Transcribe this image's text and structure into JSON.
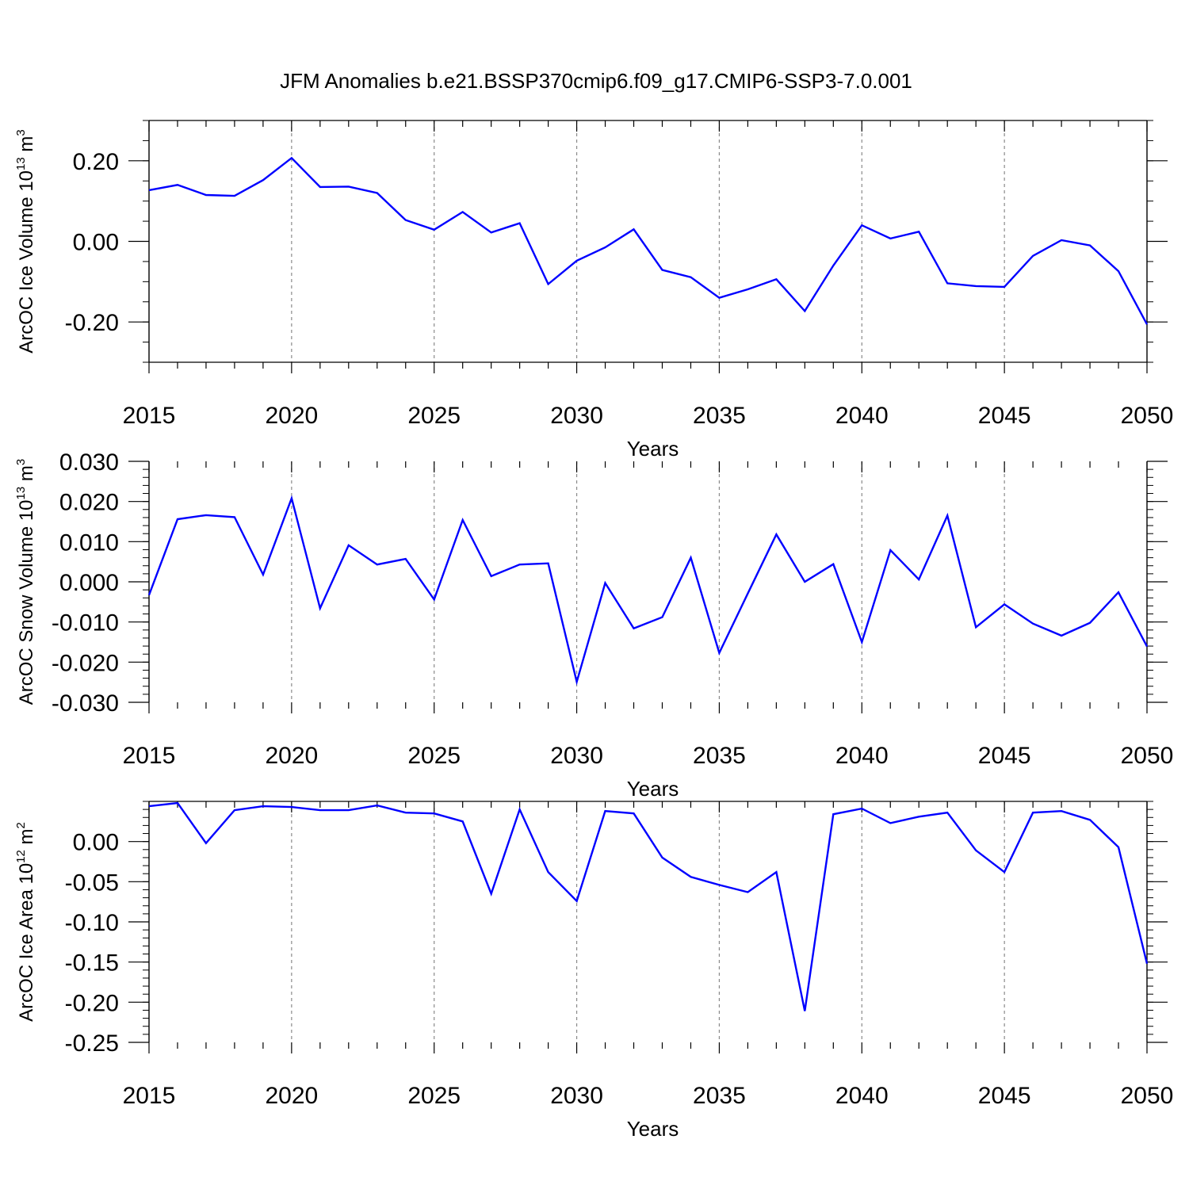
{
  "figure": {
    "title": "JFM Anomalies b.e21.BSSP370cmip6.f09_g17.CMIP6-SSP3-7.0.001",
    "line_color": "#0000ff"
  },
  "chart_data": [
    {
      "type": "line",
      "title": "JFM Anomalies b.e21.BSSP370cmip6.f09_g17.CMIP6-SSP3-7.0.001",
      "xlabel": "Years",
      "ylabel": "ArcOC Ice Volume",
      "ylabel_unit": "10^13 m^3",
      "ylabel_unit_base": "10",
      "ylabel_unit_exp": "13",
      "ylabel_unit_m": "m",
      "ylabel_unit_m_exp": "3",
      "xlim": [
        2015,
        2050
      ],
      "ylim": [
        -0.3,
        0.3
      ],
      "x_major_ticks": [
        2015,
        2020,
        2025,
        2030,
        2035,
        2040,
        2045,
        2050
      ],
      "x_tick_labels": [
        "2015",
        "2020",
        "2025",
        "2030",
        "2035",
        "2040",
        "2045",
        "2050"
      ],
      "y_major_ticks": [
        -0.2,
        0.0,
        0.2
      ],
      "y_tick_labels": [
        "-0.20",
        "0.00",
        "0.20"
      ],
      "y_minor_step": 0.05,
      "y_reference_lines": [
        -0.3,
        0.3
      ],
      "x": [
        2015,
        2016,
        2017,
        2018,
        2019,
        2020,
        2021,
        2022,
        2023,
        2024,
        2025,
        2026,
        2027,
        2028,
        2029,
        2030,
        2031,
        2032,
        2033,
        2034,
        2035,
        2036,
        2037,
        2038,
        2039,
        2040,
        2041,
        2042,
        2043,
        2044,
        2045,
        2046,
        2047,
        2048,
        2049,
        2050
      ],
      "series": [
        {
          "name": "ArcOC Ice Volume",
          "values": [
            0.127,
            0.14,
            0.115,
            0.113,
            0.152,
            0.207,
            0.135,
            0.136,
            0.12,
            0.053,
            0.029,
            0.073,
            0.022,
            0.045,
            -0.106,
            -0.048,
            -0.015,
            0.03,
            -0.071,
            -0.089,
            -0.14,
            -0.119,
            -0.094,
            -0.173,
            -0.06,
            0.04,
            0.007,
            0.024,
            -0.104,
            -0.111,
            -0.113,
            -0.036,
            0.003,
            -0.01,
            -0.074,
            -0.206
          ]
        }
      ]
    },
    {
      "type": "line",
      "xlabel": "Years",
      "ylabel": "ArcOC Snow Volume",
      "ylabel_unit": "10^13 m^3",
      "ylabel_unit_base": "10",
      "ylabel_unit_exp": "13",
      "ylabel_unit_m": "m",
      "ylabel_unit_m_exp": "3",
      "xlim": [
        2015,
        2050
      ],
      "ylim": [
        -0.03,
        0.03
      ],
      "x_major_ticks": [
        2015,
        2020,
        2025,
        2030,
        2035,
        2040,
        2045,
        2050
      ],
      "x_tick_labels": [
        "2015",
        "2020",
        "2025",
        "2030",
        "2035",
        "2040",
        "2045",
        "2050"
      ],
      "y_major_ticks": [
        -0.03,
        -0.02,
        -0.01,
        0.0,
        0.01,
        0.02,
        0.03
      ],
      "y_tick_labels": [
        "-0.030",
        "-0.020",
        "-0.010",
        "0.000",
        "0.010",
        "0.020",
        "0.030"
      ],
      "y_minor_step": 0.002,
      "y_reference_lines": [],
      "x": [
        2015,
        2016,
        2017,
        2018,
        2019,
        2020,
        2021,
        2022,
        2023,
        2024,
        2025,
        2026,
        2027,
        2028,
        2029,
        2030,
        2031,
        2032,
        2033,
        2034,
        2035,
        2036,
        2037,
        2038,
        2039,
        2040,
        2041,
        2042,
        2043,
        2044,
        2045,
        2046,
        2047,
        2048,
        2049,
        2050
      ],
      "series": [
        {
          "name": "ArcOC Snow Volume",
          "values": [
            -0.0033,
            0.0156,
            0.0166,
            0.0161,
            0.0018,
            0.0208,
            -0.0066,
            0.0091,
            0.0043,
            0.0057,
            -0.0044,
            0.0154,
            0.0014,
            0.0043,
            0.0046,
            -0.0249,
            -0.0003,
            -0.0116,
            -0.0088,
            0.006,
            -0.0177,
            -0.0029,
            0.0118,
            0.0,
            0.0044,
            -0.015,
            0.0079,
            0.0006,
            0.0165,
            -0.0113,
            -0.0056,
            -0.0104,
            -0.0134,
            -0.0102,
            -0.0026,
            -0.0161
          ]
        }
      ]
    },
    {
      "type": "line",
      "xlabel": "Years",
      "ylabel": "ArcOC Ice Area",
      "ylabel_unit": "10^12 m^2",
      "ylabel_unit_base": "10",
      "ylabel_unit_exp": "12",
      "ylabel_unit_m": "m",
      "ylabel_unit_m_exp": "2",
      "xlim": [
        2015,
        2050
      ],
      "ylim": [
        -0.25,
        0.05
      ],
      "x_major_ticks": [
        2015,
        2020,
        2025,
        2030,
        2035,
        2040,
        2045,
        2050
      ],
      "x_tick_labels": [
        "2015",
        "2020",
        "2025",
        "2030",
        "2035",
        "2040",
        "2045",
        "2050"
      ],
      "y_major_ticks": [
        -0.25,
        -0.2,
        -0.15,
        -0.1,
        -0.05,
        0.0
      ],
      "y_tick_labels": [
        "-0.25",
        "-0.20",
        "-0.15",
        "-0.10",
        "-0.05",
        "0.00"
      ],
      "y_minor_step": 0.01,
      "y_reference_lines": [
        0.05
      ],
      "x": [
        2015,
        2016,
        2017,
        2018,
        2019,
        2020,
        2021,
        2022,
        2023,
        2024,
        2025,
        2026,
        2027,
        2028,
        2029,
        2030,
        2031,
        2032,
        2033,
        2034,
        2035,
        2036,
        2037,
        2038,
        2039,
        2040,
        2041,
        2042,
        2043,
        2044,
        2045,
        2046,
        2047,
        2048,
        2049,
        2050
      ],
      "series": [
        {
          "name": "ArcOC Ice Area",
          "values": [
            0.044,
            0.048,
            -0.002,
            0.039,
            0.044,
            0.043,
            0.039,
            0.039,
            0.045,
            0.036,
            0.035,
            0.025,
            -0.065,
            0.04,
            -0.038,
            -0.074,
            0.038,
            0.035,
            -0.02,
            -0.044,
            -0.054,
            -0.063,
            -0.038,
            -0.211,
            0.034,
            0.041,
            0.023,
            0.031,
            0.036,
            -0.011,
            -0.038,
            0.036,
            0.038,
            0.027,
            -0.007,
            -0.152
          ]
        }
      ]
    }
  ]
}
